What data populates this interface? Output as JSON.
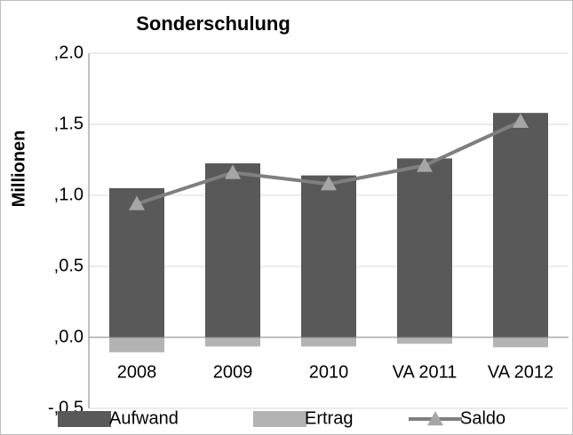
{
  "chart_data": {
    "type": "bar",
    "title": "Sonderschulung",
    "y_label": "Millionen",
    "categories": [
      "2008",
      "2009",
      "2010",
      "VA 2011",
      "VA 2012"
    ],
    "series": [
      {
        "name": "Aufwand",
        "type": "bar",
        "color": "#595959",
        "values": [
          1.05,
          1.225,
          1.14,
          1.26,
          1.58
        ]
      },
      {
        "name": "Ertrag",
        "type": "bar",
        "color": "#b3b3b3",
        "values": [
          -0.105,
          -0.065,
          -0.065,
          -0.045,
          -0.07
        ]
      },
      {
        "name": "Saldo",
        "type": "line",
        "color": "#7f7f7f",
        "values": [
          0.94,
          1.16,
          1.08,
          1.21,
          1.52
        ]
      }
    ],
    "ylim": [
      -0.5,
      2.0
    ],
    "yticks": [
      {
        "value": -0.5,
        "label": "-,0.5"
      },
      {
        "value": 0.0,
        "label": ",0.0"
      },
      {
        "value": 0.5,
        "label": ",0.5"
      },
      {
        "value": 1.0,
        "label": ",1.0"
      },
      {
        "value": 1.5,
        "label": ",1.5"
      },
      {
        "value": 2.0,
        "label": ",2.0"
      }
    ],
    "grid": true,
    "legend": "bottom"
  }
}
